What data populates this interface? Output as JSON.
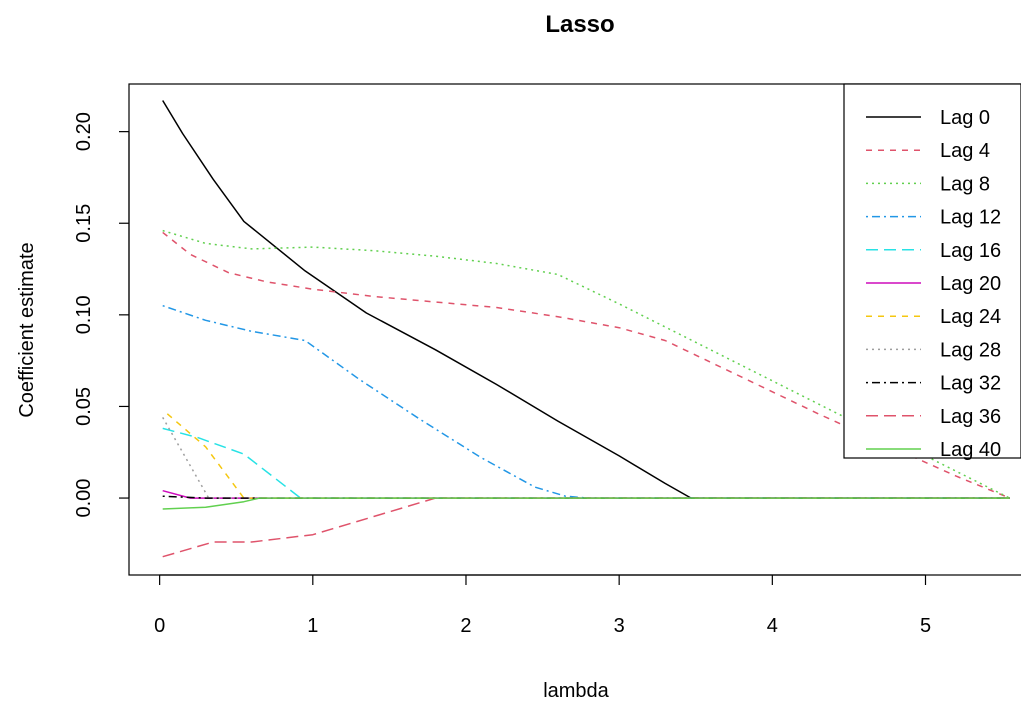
{
  "chart_data": {
    "type": "line",
    "title": "Lasso",
    "xlabel": "lambda",
    "ylabel": "Coefficient estimate",
    "xlim": [
      -0.2,
      5.63
    ],
    "ylim": [
      -0.042,
      0.226
    ],
    "x_ticks": [
      0,
      1,
      2,
      3,
      4,
      5
    ],
    "x_tick_labels": [
      "0",
      "1",
      "2",
      "3",
      "4",
      "5"
    ],
    "y_ticks": [
      0.0,
      0.05,
      0.1,
      0.15,
      0.2
    ],
    "y_tick_labels": [
      "0.00",
      "0.05",
      "0.10",
      "0.15",
      "0.20"
    ],
    "grid": false,
    "legend_position": "top-right",
    "series": [
      {
        "name": "Lag 0",
        "color": "#000000",
        "dash": "solid",
        "x": [
          0.02,
          0.15,
          0.35,
          0.55,
          0.95,
          1.35,
          1.8,
          2.2,
          2.6,
          3.0,
          3.3,
          3.47,
          5.55
        ],
        "y": [
          0.217,
          0.199,
          0.174,
          0.151,
          0.124,
          0.101,
          0.081,
          0.062,
          0.042,
          0.023,
          0.008,
          0.0,
          0.0
        ]
      },
      {
        "name": "Lag 4",
        "color": "#DF536B",
        "dash": "short-dash",
        "x": [
          0.02,
          0.2,
          0.45,
          0.7,
          1.0,
          1.4,
          1.8,
          2.2,
          2.6,
          3.0,
          3.3,
          3.8,
          4.3,
          4.8,
          5.2,
          5.55
        ],
        "y": [
          0.145,
          0.133,
          0.123,
          0.118,
          0.114,
          0.11,
          0.107,
          0.104,
          0.099,
          0.093,
          0.086,
          0.066,
          0.046,
          0.027,
          0.012,
          0.0
        ]
      },
      {
        "name": "Lag 8",
        "color": "#61D04F",
        "dash": "dotted",
        "x": [
          0.02,
          0.3,
          0.6,
          1.0,
          1.4,
          1.8,
          2.2,
          2.6,
          3.0,
          3.5,
          4.0,
          4.5,
          5.0,
          5.55
        ],
        "y": [
          0.146,
          0.139,
          0.136,
          0.137,
          0.135,
          0.132,
          0.128,
          0.122,
          0.106,
          0.085,
          0.064,
          0.043,
          0.023,
          0.0
        ]
      },
      {
        "name": "Lag 12",
        "color": "#2297E6",
        "dash": "dash-dot",
        "x": [
          0.02,
          0.3,
          0.6,
          0.95,
          1.3,
          1.7,
          2.1,
          2.45,
          2.65,
          2.8,
          5.55
        ],
        "y": [
          0.105,
          0.097,
          0.091,
          0.086,
          0.065,
          0.043,
          0.022,
          0.006,
          0.001,
          0.0,
          0.0
        ]
      },
      {
        "name": "Lag 16",
        "color": "#28E2E5",
        "dash": "long-dash",
        "x": [
          0.02,
          0.25,
          0.55,
          0.92,
          5.55
        ],
        "y": [
          0.038,
          0.033,
          0.024,
          0.0,
          0.0
        ]
      },
      {
        "name": "Lag 20",
        "color": "#CD0BBC",
        "dash": "solid",
        "x": [
          0.02,
          0.2,
          5.55
        ],
        "y": [
          0.004,
          0.0,
          0.0
        ]
      },
      {
        "name": "Lag 24",
        "color": "#F5C710",
        "dash": "short-dash",
        "x": [
          0.05,
          0.3,
          0.55,
          5.55
        ],
        "y": [
          0.046,
          0.028,
          0.0,
          0.0
        ]
      },
      {
        "name": "Lag 28",
        "color": "#9E9E9E",
        "dash": "dotted",
        "x": [
          0.02,
          0.15,
          0.32,
          5.55
        ],
        "y": [
          0.044,
          0.025,
          0.0,
          0.0
        ]
      },
      {
        "name": "Lag 32",
        "color": "#000000",
        "dash": "dash-dot",
        "x": [
          0.02,
          0.3,
          5.55
        ],
        "y": [
          0.001,
          0.0,
          0.0
        ]
      },
      {
        "name": "Lag 36",
        "color": "#DF536B",
        "dash": "long-dash",
        "x": [
          0.02,
          0.35,
          0.6,
          1.0,
          1.4,
          1.8,
          5.55
        ],
        "y": [
          -0.032,
          -0.024,
          -0.024,
          -0.02,
          -0.01,
          0.0,
          0.0
        ]
      },
      {
        "name": "Lag 40",
        "color": "#61D04F",
        "dash": "solid",
        "x": [
          0.02,
          0.3,
          0.55,
          0.65,
          5.55
        ],
        "y": [
          -0.006,
          -0.005,
          -0.002,
          0.0,
          0.0
        ]
      }
    ]
  }
}
